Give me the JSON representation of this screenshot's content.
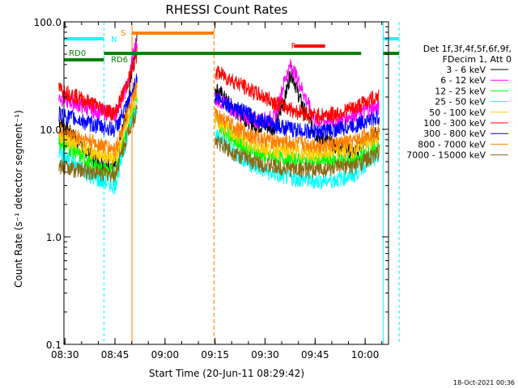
{
  "chart_data": {
    "type": "line",
    "title": "RHESSI Count Rates",
    "xlabel": "Start Time (20-Jun-11 08:29:42)",
    "ylabel": "Count Rate (s⁻¹ detector segment⁻¹)",
    "yscale": "log",
    "ylim": [
      0.1,
      100.0
    ],
    "xlim": [
      "08:29:42",
      "10:07:00"
    ],
    "x_ticks": [
      "08:30",
      "08:45",
      "09:00",
      "09:15",
      "09:30",
      "09:45",
      "10:00"
    ],
    "y_ticks": [
      "0.1",
      "1.0",
      "10.0",
      "100.0"
    ],
    "legend": {
      "placement": "right",
      "header": [
        "Det 1f,3f,4f,5f,6f,9f,",
        "FDecim 1, Att 0"
      ]
    },
    "series": [
      {
        "name": "3 - 6 keV",
        "color": "#000000",
        "values": [
          [
            8.47,
            12.2
          ],
          [
            8.65,
            5.2
          ],
          [
            8.75,
            4.5
          ],
          [
            8.82,
            20.0
          ],
          [
            8.835,
            38.0
          ],
          [
            8.86,
            70.0
          ],
          [
            9.25,
            25.0
          ],
          [
            9.35,
            15.0
          ],
          [
            9.45,
            11.0
          ],
          [
            9.55,
            10.5
          ],
          [
            9.6,
            20.0
          ],
          [
            9.63,
            35.0
          ],
          [
            9.68,
            18.0
          ],
          [
            9.75,
            9.0
          ],
          [
            9.85,
            7.0
          ],
          [
            9.95,
            6.0
          ],
          [
            10.0,
            8.0
          ],
          [
            10.07,
            9.5
          ]
        ]
      },
      {
        "name": "6 - 12 keV",
        "color": "#ff00ff",
        "values": [
          [
            8.47,
            20.0
          ],
          [
            8.65,
            15.0
          ],
          [
            8.75,
            14.0
          ],
          [
            8.82,
            28.0
          ],
          [
            8.835,
            45.0
          ],
          [
            8.86,
            70.0
          ],
          [
            9.25,
            20.0
          ],
          [
            9.35,
            15.0
          ],
          [
            9.45,
            12.0
          ],
          [
            9.55,
            13.0
          ],
          [
            9.6,
            30.0
          ],
          [
            9.63,
            40.0
          ],
          [
            9.68,
            25.0
          ],
          [
            9.75,
            12.0
          ],
          [
            9.85,
            12.0
          ],
          [
            9.95,
            14.0
          ],
          [
            10.0,
            15.0
          ],
          [
            10.07,
            16.0
          ]
        ]
      },
      {
        "name": "12 - 25 keV",
        "color": "#00ff00",
        "values": [
          [
            8.47,
            8.0
          ],
          [
            8.65,
            4.5
          ],
          [
            8.75,
            4.0
          ],
          [
            8.82,
            12.0
          ],
          [
            8.86,
            20.0
          ],
          [
            9.25,
            12.0
          ],
          [
            9.35,
            8.0
          ],
          [
            9.45,
            6.0
          ],
          [
            9.55,
            5.5
          ],
          [
            9.65,
            5.2
          ],
          [
            9.75,
            5.0
          ],
          [
            9.85,
            5.2
          ],
          [
            9.95,
            5.0
          ],
          [
            10.0,
            6.0
          ],
          [
            10.07,
            7.0
          ]
        ]
      },
      {
        "name": "25 - 50 keV",
        "color": "#00ffff",
        "values": [
          [
            8.47,
            6.0
          ],
          [
            8.65,
            3.5
          ],
          [
            8.75,
            3.0
          ],
          [
            8.82,
            10.0
          ],
          [
            8.86,
            17.0
          ],
          [
            9.25,
            9.0
          ],
          [
            9.35,
            6.0
          ],
          [
            9.45,
            4.5
          ],
          [
            9.55,
            3.8
          ],
          [
            9.65,
            3.5
          ],
          [
            9.75,
            3.3
          ],
          [
            9.85,
            3.4
          ],
          [
            9.95,
            3.8
          ],
          [
            10.0,
            4.8
          ],
          [
            10.07,
            5.5
          ]
        ]
      },
      {
        "name": "50 - 100 keV",
        "color": "#ffcc00",
        "values": [
          [
            8.47,
            9.0
          ],
          [
            8.65,
            6.0
          ],
          [
            8.75,
            5.5
          ],
          [
            8.82,
            13.0
          ],
          [
            8.86,
            22.0
          ],
          [
            9.25,
            12.5
          ],
          [
            9.35,
            9.0
          ],
          [
            9.45,
            7.0
          ],
          [
            9.55,
            6.5
          ],
          [
            9.65,
            6.2
          ],
          [
            9.75,
            6.0
          ],
          [
            9.85,
            6.2
          ],
          [
            9.95,
            6.5
          ],
          [
            10.0,
            7.5
          ],
          [
            10.07,
            8.5
          ]
        ]
      },
      {
        "name": "100 - 300 keV",
        "color": "#ff0000",
        "values": [
          [
            8.47,
            24.0
          ],
          [
            8.65,
            17.0
          ],
          [
            8.75,
            14.0
          ],
          [
            8.82,
            30.0
          ],
          [
            8.86,
            50.0
          ],
          [
            9.25,
            35.0
          ],
          [
            9.35,
            28.0
          ],
          [
            9.45,
            22.0
          ],
          [
            9.55,
            18.0
          ],
          [
            9.65,
            15.0
          ],
          [
            9.75,
            13.5
          ],
          [
            9.85,
            14.0
          ],
          [
            9.95,
            16.0
          ],
          [
            10.0,
            18.0
          ],
          [
            10.07,
            21.0
          ]
        ]
      },
      {
        "name": "300 - 800 keV",
        "color": "#0000ff",
        "values": [
          [
            8.47,
            14.0
          ],
          [
            8.65,
            11.0
          ],
          [
            8.75,
            10.0
          ],
          [
            8.82,
            18.0
          ],
          [
            8.86,
            30.0
          ],
          [
            9.25,
            20.0
          ],
          [
            9.35,
            16.0
          ],
          [
            9.45,
            13.0
          ],
          [
            9.55,
            11.0
          ],
          [
            9.65,
            10.0
          ],
          [
            9.75,
            9.5
          ],
          [
            9.85,
            10.0
          ],
          [
            9.95,
            11.0
          ],
          [
            10.0,
            12.0
          ],
          [
            10.07,
            13.0
          ]
        ]
      },
      {
        "name": "800 - 7000 keV",
        "color": "#ff8000",
        "values": [
          [
            8.47,
            10.0
          ],
          [
            8.65,
            7.5
          ],
          [
            8.75,
            6.5
          ],
          [
            8.82,
            15.0
          ],
          [
            8.86,
            25.0
          ],
          [
            9.25,
            14.0
          ],
          [
            9.35,
            10.5
          ],
          [
            9.45,
            8.5
          ],
          [
            9.55,
            7.8
          ],
          [
            9.65,
            7.4
          ],
          [
            9.75,
            7.2
          ],
          [
            9.85,
            7.3
          ],
          [
            9.95,
            7.8
          ],
          [
            10.0,
            8.8
          ],
          [
            10.07,
            10.0
          ]
        ]
      },
      {
        "name": "7000 - 15000 keV",
        "color": "#8b6914",
        "values": [
          [
            8.47,
            4.5
          ],
          [
            8.65,
            4.0
          ],
          [
            8.75,
            3.8
          ],
          [
            8.82,
            10.0
          ],
          [
            8.86,
            15.0
          ],
          [
            9.25,
            8.0
          ],
          [
            9.35,
            6.0
          ],
          [
            9.45,
            5.0
          ],
          [
            9.55,
            4.5
          ],
          [
            9.65,
            4.3
          ],
          [
            9.75,
            4.2
          ],
          [
            9.85,
            4.4
          ],
          [
            9.95,
            4.6
          ],
          [
            10.0,
            5.2
          ],
          [
            10.07,
            6.0
          ]
        ]
      }
    ],
    "flag_bars": [
      {
        "label": "N",
        "color": "#00ffff",
        "segments": [
          [
            8.495,
            8.695
          ],
          [
            10.09,
            10.17
          ]
        ]
      },
      {
        "label": "S",
        "color": "#ff8000",
        "segments": [
          [
            8.835,
            9.245
          ]
        ]
      },
      {
        "label": "RD0",
        "color": "#008000",
        "segments": [
          [
            8.495,
            8.695
          ]
        ]
      },
      {
        "label": "RD6",
        "color": "#008000",
        "segments": [
          [
            8.695,
            9.245
          ],
          [
            9.245,
            9.415
          ],
          [
            9.415,
            9.98
          ],
          [
            10.09,
            10.17
          ]
        ]
      },
      {
        "label": "F",
        "color": "#ff0000",
        "segments": [
          [
            9.645,
            9.8
          ]
        ]
      }
    ],
    "footer_timestamp": "18-Oct-2021 00:36"
  }
}
